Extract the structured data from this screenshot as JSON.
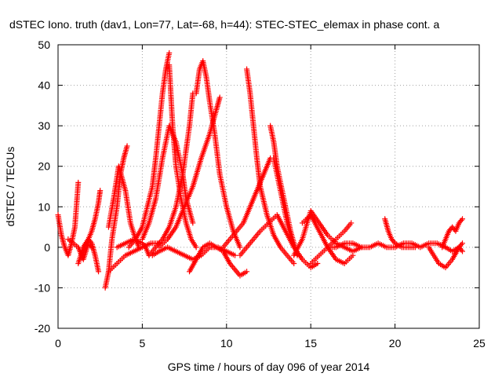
{
  "chart_data": {
    "type": "scatter",
    "title": "dSTEC Iono. truth (dav1, Lon=77, Lat=-68, h=44): STEC-STEC_elemax in phase cont. a",
    "xlabel": "GPS time / hours of day 096 of year 2014",
    "ylabel": "dSTEC  / TECUs",
    "xlim": [
      0,
      25
    ],
    "ylim": [
      -20,
      50
    ],
    "xticks": [
      0,
      5,
      10,
      15,
      20,
      25
    ],
    "yticks": [
      -20,
      -10,
      0,
      10,
      20,
      30,
      40,
      50
    ],
    "grid": true,
    "marker": "+",
    "color": "#ff0000",
    "series": [
      {
        "x": [
          0.0,
          0.2,
          0.4,
          0.6,
          0.8,
          1.0,
          1.2
        ],
        "y": [
          8,
          3,
          0,
          -2,
          1,
          5,
          16
        ]
      },
      {
        "x": [
          0.6,
          0.9,
          1.2,
          1.5,
          1.8,
          2.0
        ],
        "y": [
          2,
          1,
          0,
          -3,
          1,
          0
        ]
      },
      {
        "x": [
          1.5,
          1.8,
          2.0,
          2.2,
          2.4,
          2.5
        ],
        "y": [
          0,
          2,
          4,
          7,
          11,
          14
        ]
      },
      {
        "x": [
          1.2,
          1.5,
          1.8,
          2.0,
          2.2,
          2.4
        ],
        "y": [
          -4,
          0,
          2,
          1,
          -2,
          -6
        ]
      },
      {
        "x": [
          2.8,
          3.0,
          3.2,
          3.5,
          3.7,
          3.9,
          4.1
        ],
        "y": [
          -10,
          -6,
          2,
          10,
          18,
          22,
          25
        ]
      },
      {
        "x": [
          3.0,
          3.3,
          3.6,
          4.0,
          4.3,
          4.6,
          4.8
        ],
        "y": [
          5,
          12,
          20,
          14,
          6,
          2,
          0
        ]
      },
      {
        "x": [
          3.0,
          3.5,
          4.0,
          4.5,
          5.0,
          5.5,
          6.0
        ],
        "y": [
          -6,
          -4,
          -2,
          -1,
          0,
          1,
          1
        ]
      },
      {
        "x": [
          3.5,
          4.0,
          4.5,
          5.0,
          5.2,
          5.4
        ],
        "y": [
          0,
          1,
          2,
          1,
          0,
          -2
        ]
      },
      {
        "x": [
          4.2,
          4.6,
          5.0,
          5.3,
          5.6,
          5.8,
          6.0,
          6.2,
          6.4,
          6.6
        ],
        "y": [
          0,
          2,
          5,
          10,
          15,
          22,
          30,
          38,
          44,
          48
        ]
      },
      {
        "x": [
          6.6,
          6.8,
          7.0,
          7.3,
          7.6,
          7.9,
          8.2
        ],
        "y": [
          45,
          30,
          20,
          12,
          6,
          2,
          0
        ]
      },
      {
        "x": [
          5.0,
          5.4,
          5.8,
          6.2,
          6.6,
          7.0,
          7.4,
          7.6,
          8.0
        ],
        "y": [
          2,
          6,
          12,
          22,
          30,
          26,
          18,
          12,
          6
        ]
      },
      {
        "x": [
          5.4,
          5.8,
          6.2,
          6.6,
          7.0,
          7.4,
          7.8,
          8.0
        ],
        "y": [
          -2,
          0,
          2,
          5,
          10,
          18,
          30,
          38
        ]
      },
      {
        "x": [
          6.0,
          6.5,
          7.0,
          7.5,
          8.0,
          8.5,
          9.0,
          9.4,
          9.6
        ],
        "y": [
          0,
          2,
          5,
          10,
          15,
          22,
          28,
          34,
          37
        ]
      },
      {
        "x": [
          8.2,
          8.4,
          8.6,
          8.8,
          9.0,
          9.3,
          9.6,
          10.0,
          10.4,
          10.8
        ],
        "y": [
          38,
          44,
          46,
          42,
          36,
          28,
          18,
          10,
          4,
          0
        ]
      },
      {
        "x": [
          5.6,
          6.0,
          6.5,
          7.0,
          7.5,
          8.0,
          8.5,
          9.0,
          9.5,
          10.0,
          10.5
        ],
        "y": [
          -2,
          -1,
          0,
          -1,
          -2,
          -3,
          -2,
          0,
          0,
          -1,
          -2
        ]
      },
      {
        "x": [
          7.8,
          8.2,
          8.6,
          9.0,
          9.4,
          9.8,
          10.2,
          10.8,
          11.2
        ],
        "y": [
          -6,
          -3,
          0,
          1,
          0,
          -1,
          -4,
          -7,
          -6
        ]
      },
      {
        "x": [
          11.2,
          11.4,
          11.6,
          11.8,
          12.0,
          12.4,
          12.8,
          13.2,
          13.6,
          14.0
        ],
        "y": [
          44,
          38,
          30,
          22,
          15,
          8,
          3,
          0,
          -2,
          -4
        ]
      },
      {
        "x": [
          9.8,
          10.2,
          10.6,
          11.0,
          11.4,
          11.8,
          12.2,
          12.6
        ],
        "y": [
          0,
          2,
          4,
          6,
          10,
          14,
          18,
          22
        ]
      },
      {
        "x": [
          12.6,
          12.8,
          13.0,
          13.4,
          13.8,
          14.2
        ],
        "y": [
          30,
          26,
          20,
          12,
          4,
          -2
        ]
      },
      {
        "x": [
          12.8,
          13.2,
          13.6,
          14.0,
          14.5,
          15.0,
          15.4
        ],
        "y": [
          22,
          14,
          6,
          0,
          -3,
          -5,
          -4
        ]
      },
      {
        "x": [
          10.8,
          11.2,
          11.6,
          12.0,
          12.5,
          13.0,
          13.5,
          14.0
        ],
        "y": [
          -2,
          0,
          2,
          4,
          6,
          8,
          4,
          0
        ]
      },
      {
        "x": [
          14.0,
          14.5,
          15.0,
          15.5,
          16.0,
          16.5,
          17.0,
          17.5,
          18.0
        ],
        "y": [
          -2,
          2,
          9,
          6,
          3,
          1,
          0,
          -1,
          0
        ]
      },
      {
        "x": [
          14.5,
          15.0,
          15.5,
          16.0,
          16.5,
          17.0,
          17.5
        ],
        "y": [
          6,
          8,
          4,
          0,
          -3,
          -4,
          -2
        ]
      },
      {
        "x": [
          15.0,
          15.5,
          16.0,
          16.5,
          17.0,
          17.4
        ],
        "y": [
          -4,
          -2,
          0,
          2,
          4,
          6
        ]
      },
      {
        "x": [
          16.0,
          16.5,
          17.0,
          17.5,
          18.0,
          18.5,
          19.0,
          19.5,
          20.0
        ],
        "y": [
          0,
          0,
          1,
          1,
          0,
          0,
          1,
          0,
          0
        ]
      },
      {
        "x": [
          19.4,
          19.6,
          19.8,
          20.0,
          20.4,
          20.8,
          21.2
        ],
        "y": [
          7,
          4,
          2,
          1,
          0,
          0,
          0
        ]
      },
      {
        "x": [
          20.0,
          20.5,
          21.0,
          21.5,
          22.0,
          22.5,
          23.0
        ],
        "y": [
          0,
          1,
          1,
          0,
          1,
          1,
          0
        ]
      },
      {
        "x": [
          22.0,
          22.3,
          22.6,
          23.0,
          23.4,
          23.8,
          24.0
        ],
        "y": [
          0,
          -2,
          -4,
          -5,
          -3,
          0,
          1
        ]
      },
      {
        "x": [
          22.8,
          23.0,
          23.2,
          23.4,
          23.6,
          23.8,
          24.0
        ],
        "y": [
          0,
          2,
          4,
          5,
          4,
          6,
          7
        ]
      },
      {
        "x": [
          23.0,
          23.4,
          23.8,
          24.0
        ],
        "y": [
          0,
          -1,
          0,
          -1
        ]
      }
    ]
  }
}
